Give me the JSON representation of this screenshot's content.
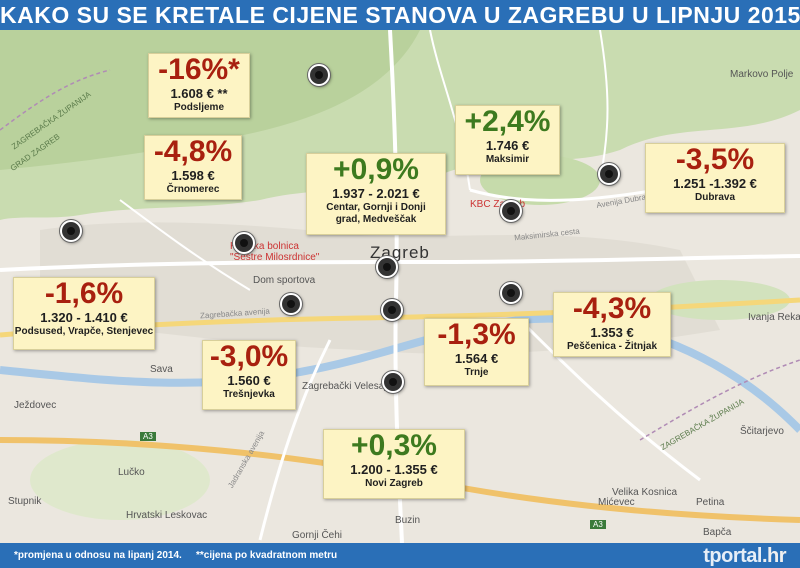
{
  "title": "KAKO SU SE KRETALE CIJENE STANOVA U ZAGREBU U LIPNJU 2015.",
  "footer": {
    "note1": "*promjena u odnosu na lipanj 2014.",
    "note2": "**cijena po kvadratnom metru",
    "brand": "tportal",
    "brand_suffix": ".hr"
  },
  "colors": {
    "increase": "#3d7a1f",
    "decrease": "#a8200f",
    "header": "#2a6fb7",
    "box_bg": "#fdf4c4"
  },
  "districts": [
    {
      "id": "podsljeme",
      "change": "-16%*",
      "price": "1.608 € **",
      "name": "Podsljeme",
      "trend": "down"
    },
    {
      "id": "crnomerec",
      "change": "-4,8%",
      "price": "1.598 €",
      "name": "Črnomerec",
      "trend": "down"
    },
    {
      "id": "centar",
      "change": "+0,9%",
      "price": "1.937 - 2.021 €",
      "name": "Centar, Gornji i Donji grad, Medveščak",
      "trend": "up"
    },
    {
      "id": "maksimir",
      "change": "+2,4%",
      "price": "1.746 €",
      "name": "Maksimir",
      "trend": "up"
    },
    {
      "id": "dubrava",
      "change": "-3,5%",
      "price": "1.251 -1.392 €",
      "name": "Dubrava",
      "trend": "down"
    },
    {
      "id": "podsused",
      "change": "-1,6%",
      "price": "1.320 - 1.410 €",
      "name": "Podsused, Vrapče, Stenjevec",
      "trend": "down"
    },
    {
      "id": "tresnjevka",
      "change": "-3,0%",
      "price": "1.560 €",
      "name": "Trešnjevka",
      "trend": "down"
    },
    {
      "id": "trnje",
      "change": "-1,3%",
      "price": "1.564 €",
      "name": "Trnje",
      "trend": "down"
    },
    {
      "id": "pescenica",
      "change": "-4,3%",
      "price": "1.353 €",
      "name": "Peščenica - Žitnjak",
      "trend": "down"
    },
    {
      "id": "novizagreb",
      "change": "+0,3%",
      "price": "1.200 - 1.355 €",
      "name": "Novi Zagreb",
      "trend": "up"
    }
  ],
  "map_labels": {
    "zagreb": "Zagreb",
    "markovo_polje": "Markovo Polje",
    "ivanja_reka": "Ivanja Reka",
    "jezdovec": "Ježdovec",
    "lucko": "Lučko",
    "stupnik": "Stupnik",
    "hrvatski_leskovac": "Hrvatski Leskovac",
    "velika_kosnica": "Velika Kosnica",
    "micevec": "Mićevec",
    "petina": "Petina",
    "bapca": "Bapča",
    "scitarjevo": "Ščitarjevo",
    "buzin": "Buzin",
    "gornji_cehi": "Gornji Čehi",
    "dom_sportova": "Dom sportova",
    "kbc_zagreb": "KBC Zagreb",
    "zagrebacki_velesajam": "Zagrebački Velesajam",
    "bolnica": "Klinička bolnica \"Sestre Milosrdnice\"",
    "sava": "Sava",
    "grad_zagreb": "GRAD ZAGREB",
    "zagrebacka_zupanija": "ZAGREBAČKA ŽUPANIJA",
    "maksimirska": "Maksimirska cesta",
    "avenija_dubrava": "Avenija Dubrava",
    "zagrebacka_avenija": "Zagrebačka avenija",
    "jadranska_avenija": "Jadranska avenija",
    "a3": "A3"
  }
}
